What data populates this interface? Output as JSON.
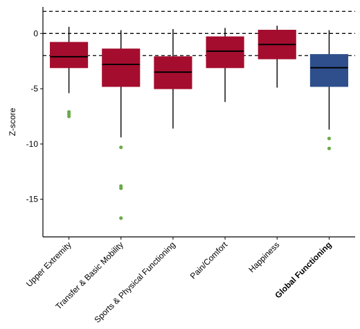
{
  "chart_data": {
    "type": "boxplot",
    "title": "",
    "xlabel": "",
    "ylabel": "Z-score",
    "ylim": [
      -18.4,
      2.4
    ],
    "yticks": [
      0,
      -5,
      -10,
      -15
    ],
    "ytick_labels": [
      "0",
      "-5",
      "-10",
      "-15"
    ],
    "reference_lines": [
      2,
      0,
      -2
    ],
    "reference_line_style": "dashed",
    "grid": false,
    "legend": "none",
    "categories": [
      "Upper Extremity",
      "Transfer & Basic Mobility",
      "Sports & Physical Functioning",
      "Pain/Comfort",
      "Happiness",
      "Global Functioning"
    ],
    "bold_categories": [
      "Global Functioning"
    ],
    "boxes": [
      {
        "category": "Upper Extremity",
        "whisker_low": -5.4,
        "q1": -3.1,
        "median": -2.1,
        "q3": -0.8,
        "whisker_high": 0.6,
        "outliers": [
          -7.1,
          -7.3,
          -7.5
        ],
        "color": "#a50d2e"
      },
      {
        "category": "Transfer & Basic Mobility",
        "whisker_low": -9.4,
        "q1": -4.8,
        "median": -2.8,
        "q3": -1.4,
        "whisker_high": 0.3,
        "outliers": [
          -10.3,
          -13.8,
          -14.0,
          -16.7
        ],
        "color": "#a50d2e"
      },
      {
        "category": "Sports & Physical Functioning",
        "whisker_low": -8.6,
        "q1": -5.0,
        "median": -3.5,
        "q3": -2.1,
        "whisker_high": 0.4,
        "outliers": [],
        "color": "#a50d2e"
      },
      {
        "category": "Pain/Comfort",
        "whisker_low": -6.2,
        "q1": -3.1,
        "median": -1.6,
        "q3": -0.3,
        "whisker_high": 0.5,
        "outliers": [],
        "color": "#a50d2e"
      },
      {
        "category": "Happiness",
        "whisker_low": -4.9,
        "q1": -2.3,
        "median": -1.0,
        "q3": 0.3,
        "whisker_high": 0.7,
        "outliers": [],
        "color": "#a50d2e"
      },
      {
        "category": "Global Functioning",
        "whisker_low": -8.7,
        "q1": -4.8,
        "median": -3.1,
        "q3": -1.9,
        "whisker_high": 0.3,
        "outliers": [
          -9.5,
          -10.4
        ],
        "color": "#2e4f8c"
      }
    ],
    "outlier_color": "#6aaa4a"
  }
}
